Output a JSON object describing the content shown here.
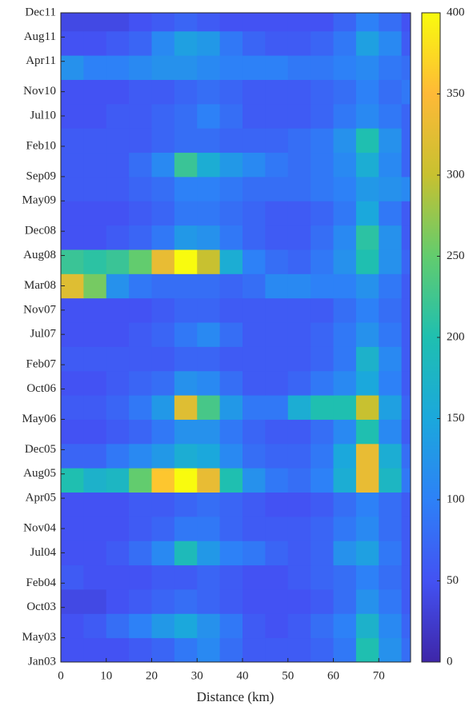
{
  "chart_data": {
    "type": "heatmap",
    "xlabel": "Distance (km)",
    "x_bins": [
      0,
      5,
      10,
      15,
      20,
      25,
      30,
      35,
      40,
      45,
      50,
      55,
      60,
      65,
      70,
      75,
      77
    ],
    "y_bins": [
      0,
      4,
      8,
      12,
      16,
      20,
      24,
      28,
      32,
      36,
      40,
      44,
      48,
      52,
      56,
      60,
      64,
      68,
      72,
      76,
      80,
      84,
      88,
      92,
      96,
      100,
      104,
      107
    ],
    "values": [
      [
        50,
        50,
        50,
        60,
        70,
        90,
        110,
        80,
        60,
        60,
        60,
        70,
        90,
        200,
        120,
        80
      ],
      [
        50,
        60,
        80,
        100,
        130,
        150,
        120,
        90,
        60,
        50,
        60,
        80,
        100,
        170,
        110,
        70
      ],
      [
        40,
        40,
        50,
        60,
        70,
        80,
        70,
        60,
        50,
        50,
        50,
        60,
        80,
        120,
        90,
        60
      ],
      [
        60,
        50,
        50,
        50,
        60,
        60,
        70,
        60,
        50,
        50,
        60,
        70,
        80,
        100,
        80,
        60
      ],
      [
        50,
        50,
        60,
        80,
        110,
        190,
        130,
        100,
        90,
        70,
        60,
        70,
        120,
        140,
        90,
        60
      ],
      [
        50,
        50,
        50,
        60,
        70,
        90,
        90,
        70,
        60,
        60,
        60,
        70,
        90,
        110,
        80,
        60
      ],
      [
        50,
        50,
        50,
        60,
        60,
        70,
        80,
        70,
        60,
        50,
        50,
        60,
        80,
        100,
        80,
        60
      ],
      [
        200,
        170,
        180,
        250,
        360,
        400,
        330,
        200,
        120,
        90,
        80,
        100,
        160,
        330,
        180,
        90
      ],
      [
        70,
        70,
        90,
        110,
        130,
        160,
        150,
        110,
        80,
        70,
        70,
        90,
        150,
        330,
        160,
        80
      ],
      [
        50,
        50,
        60,
        70,
        90,
        120,
        120,
        90,
        70,
        60,
        60,
        80,
        110,
        200,
        110,
        60
      ],
      [
        60,
        60,
        70,
        90,
        130,
        320,
        230,
        130,
        90,
        90,
        160,
        200,
        200,
        300,
        140,
        70
      ],
      [
        50,
        50,
        60,
        70,
        80,
        120,
        110,
        80,
        60,
        60,
        70,
        90,
        110,
        150,
        100,
        60
      ],
      [
        60,
        60,
        60,
        60,
        60,
        70,
        70,
        60,
        60,
        60,
        60,
        70,
        90,
        170,
        110,
        60
      ],
      [
        50,
        50,
        50,
        60,
        70,
        90,
        110,
        80,
        60,
        60,
        60,
        70,
        90,
        120,
        90,
        60
      ],
      [
        50,
        50,
        50,
        50,
        60,
        70,
        70,
        60,
        60,
        60,
        60,
        60,
        80,
        100,
        80,
        60
      ],
      [
        320,
        260,
        120,
        90,
        80,
        80,
        80,
        70,
        80,
        110,
        110,
        100,
        100,
        120,
        90,
        60
      ],
      [
        220,
        210,
        220,
        250,
        330,
        400,
        300,
        160,
        100,
        80,
        70,
        90,
        120,
        200,
        120,
        70
      ],
      [
        50,
        50,
        60,
        70,
        90,
        130,
        120,
        90,
        70,
        60,
        60,
        80,
        110,
        210,
        120,
        60
      ],
      [
        50,
        50,
        50,
        60,
        70,
        90,
        90,
        80,
        70,
        60,
        60,
        70,
        90,
        150,
        90,
        60
      ],
      [
        60,
        60,
        60,
        70,
        80,
        100,
        100,
        90,
        80,
        80,
        80,
        90,
        100,
        130,
        120,
        110
      ],
      [
        60,
        60,
        60,
        80,
        110,
        220,
        160,
        130,
        110,
        90,
        80,
        90,
        110,
        160,
        110,
        70
      ],
      [
        60,
        60,
        60,
        60,
        70,
        80,
        80,
        70,
        70,
        70,
        80,
        90,
        120,
        200,
        120,
        70
      ],
      [
        50,
        50,
        60,
        60,
        70,
        80,
        100,
        80,
        60,
        60,
        60,
        70,
        90,
        110,
        90,
        70
      ],
      [
        50,
        50,
        50,
        60,
        60,
        70,
        80,
        70,
        60,
        60,
        60,
        70,
        80,
        100,
        80,
        90
      ],
      [
        120,
        100,
        100,
        110,
        120,
        120,
        110,
        100,
        100,
        100,
        90,
        90,
        100,
        110,
        90,
        80
      ],
      [
        50,
        50,
        60,
        70,
        110,
        140,
        130,
        90,
        70,
        60,
        60,
        70,
        90,
        140,
        110,
        60
      ],
      [
        40,
        40,
        40,
        50,
        60,
        70,
        60,
        50,
        50,
        50,
        50,
        50,
        70,
        100,
        80,
        50
      ]
    ],
    "xlim": [
      0,
      77
    ],
    "xticks": [
      0,
      10,
      20,
      30,
      40,
      50,
      60,
      70
    ],
    "ylim": [
      0,
      107
    ],
    "yticks": [
      {
        "value": 0,
        "label": "Jan03"
      },
      {
        "value": 4,
        "label": "May03"
      },
      {
        "value": 9,
        "label": "Oct03"
      },
      {
        "value": 13,
        "label": "Feb04"
      },
      {
        "value": 18,
        "label": "Jul04"
      },
      {
        "value": 22,
        "label": "Nov04"
      },
      {
        "value": 27,
        "label": "Apr05"
      },
      {
        "value": 31,
        "label": "Aug05"
      },
      {
        "value": 35,
        "label": "Dec05"
      },
      {
        "value": 40,
        "label": "May06"
      },
      {
        "value": 45,
        "label": "Oct06"
      },
      {
        "value": 49,
        "label": "Feb07"
      },
      {
        "value": 54,
        "label": "Jul07"
      },
      {
        "value": 58,
        "label": "Nov07"
      },
      {
        "value": 62,
        "label": "Mar08"
      },
      {
        "value": 67,
        "label": "Aug08"
      },
      {
        "value": 71,
        "label": "Dec08"
      },
      {
        "value": 76,
        "label": "May09"
      },
      {
        "value": 80,
        "label": "Sep09"
      },
      {
        "value": 85,
        "label": "Feb10"
      },
      {
        "value": 90,
        "label": "Jul10"
      },
      {
        "value": 94,
        "label": "Nov10"
      },
      {
        "value": 99,
        "label": "Apr11"
      },
      {
        "value": 103,
        "label": "Aug11"
      },
      {
        "value": 107,
        "label": "Dec11"
      }
    ],
    "clim": [
      0,
      400
    ],
    "cticks": [
      0,
      50,
      100,
      150,
      200,
      250,
      300,
      350,
      400
    ],
    "colormap": [
      "#3e26a8",
      "#4352f3",
      "#2d81f7",
      "#1ba8dc",
      "#1fbfb0",
      "#62cc6e",
      "#c8c130",
      "#feb937",
      "#f9fb0e"
    ]
  }
}
